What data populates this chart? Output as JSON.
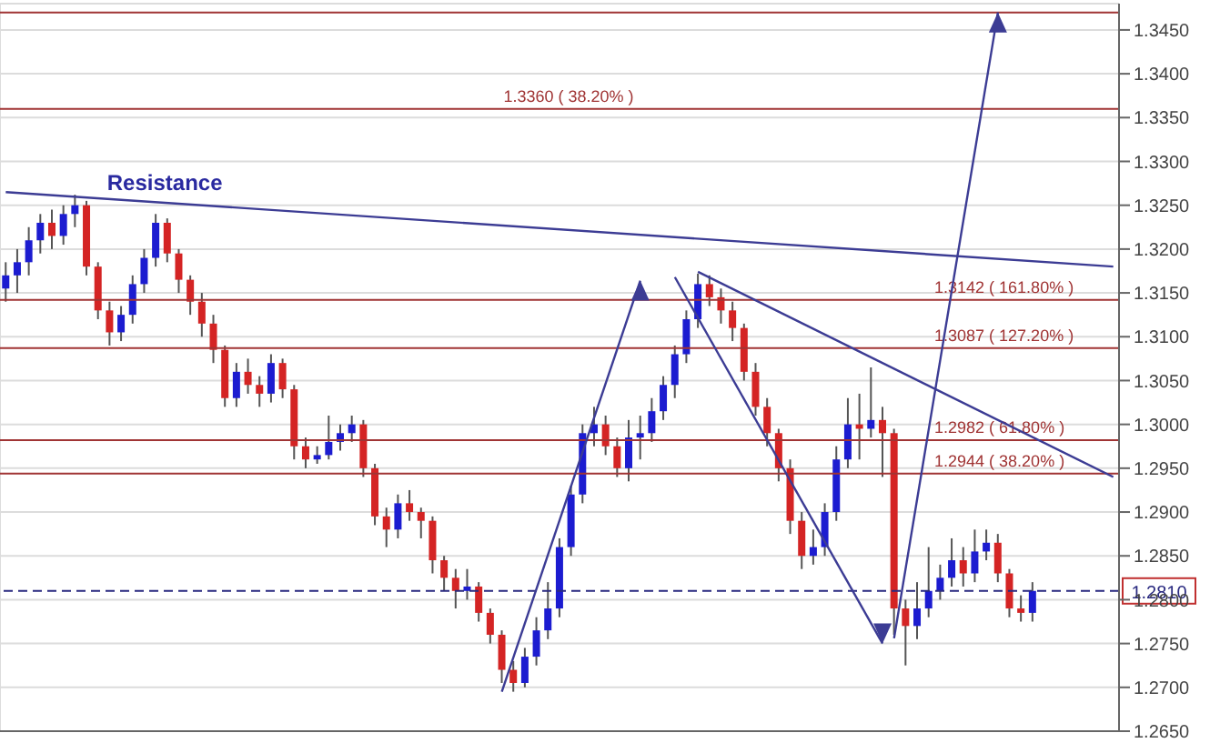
{
  "chart_data": {
    "type": "candlestick",
    "categories": [
      null,
      null,
      null,
      null,
      null,
      null,
      null,
      null,
      null,
      null,
      null,
      null,
      null,
      null,
      null,
      null,
      null,
      null,
      null,
      null,
      null,
      null,
      null,
      null,
      null,
      null,
      null,
      null,
      null,
      null,
      null,
      null,
      null,
      null,
      null,
      null,
      null,
      null,
      null,
      null,
      null,
      null,
      null,
      null,
      null,
      null,
      null,
      null,
      null,
      null,
      null,
      null,
      null,
      null,
      null,
      null,
      null,
      null,
      null,
      null,
      null,
      null,
      null,
      null,
      null,
      null,
      null,
      null,
      null,
      null,
      null,
      null,
      null,
      null,
      null,
      null,
      null,
      null,
      null,
      null,
      null,
      null,
      null,
      null,
      null,
      null,
      null,
      null,
      null,
      null,
      null,
      null,
      null,
      null,
      null,
      null,
      null
    ],
    "ohlc": [
      [
        1.3155,
        1.3185,
        1.314,
        1.317
      ],
      [
        1.317,
        1.32,
        1.315,
        1.3185
      ],
      [
        1.3185,
        1.3225,
        1.317,
        1.321
      ],
      [
        1.321,
        1.324,
        1.3195,
        1.323
      ],
      [
        1.323,
        1.3245,
        1.32,
        1.3215
      ],
      [
        1.3215,
        1.325,
        1.3205,
        1.324
      ],
      [
        1.324,
        1.3262,
        1.3225,
        1.325
      ],
      [
        1.325,
        1.3255,
        1.317,
        1.318
      ],
      [
        1.318,
        1.3185,
        1.312,
        1.313
      ],
      [
        1.313,
        1.314,
        1.309,
        1.3105
      ],
      [
        1.3105,
        1.3135,
        1.3095,
        1.3125
      ],
      [
        1.3125,
        1.317,
        1.3115,
        1.316
      ],
      [
        1.316,
        1.32,
        1.315,
        1.319
      ],
      [
        1.319,
        1.324,
        1.318,
        1.323
      ],
      [
        1.323,
        1.3235,
        1.3185,
        1.3195
      ],
      [
        1.3195,
        1.32,
        1.315,
        1.3165
      ],
      [
        1.3165,
        1.317,
        1.3125,
        1.314
      ],
      [
        1.314,
        1.315,
        1.31,
        1.3115
      ],
      [
        1.3115,
        1.3125,
        1.307,
        1.3085
      ],
      [
        1.3085,
        1.309,
        1.302,
        1.303
      ],
      [
        1.303,
        1.307,
        1.302,
        1.306
      ],
      [
        1.306,
        1.3075,
        1.3035,
        1.3045
      ],
      [
        1.3045,
        1.3055,
        1.302,
        1.3035
      ],
      [
        1.3035,
        1.308,
        1.3025,
        1.307
      ],
      [
        1.307,
        1.3075,
        1.303,
        1.304
      ],
      [
        1.304,
        1.3045,
        1.296,
        1.2975
      ],
      [
        1.2975,
        1.2985,
        1.295,
        1.296
      ],
      [
        1.296,
        1.2975,
        1.2955,
        1.2965
      ],
      [
        1.2965,
        1.301,
        1.296,
        1.298
      ],
      [
        1.298,
        1.3,
        1.297,
        1.299
      ],
      [
        1.299,
        1.301,
        1.298,
        1.3
      ],
      [
        1.3,
        1.3005,
        1.294,
        1.295
      ],
      [
        1.295,
        1.2955,
        1.2885,
        1.2895
      ],
      [
        1.2895,
        1.2905,
        1.286,
        1.288
      ],
      [
        1.288,
        1.292,
        1.287,
        1.291
      ],
      [
        1.291,
        1.2925,
        1.289,
        1.29
      ],
      [
        1.29,
        1.2905,
        1.287,
        1.289
      ],
      [
        1.289,
        1.2895,
        1.283,
        1.2845
      ],
      [
        1.2845,
        1.285,
        1.281,
        1.2825
      ],
      [
        1.2825,
        1.2835,
        1.279,
        1.281
      ],
      [
        1.281,
        1.2835,
        1.28,
        1.2815
      ],
      [
        1.2815,
        1.282,
        1.2775,
        1.2785
      ],
      [
        1.2785,
        1.279,
        1.275,
        1.276
      ],
      [
        1.276,
        1.2765,
        1.2705,
        1.272
      ],
      [
        1.272,
        1.273,
        1.2695,
        1.2705
      ],
      [
        1.2705,
        1.2745,
        1.27,
        1.2735
      ],
      [
        1.2735,
        1.278,
        1.2725,
        1.2765
      ],
      [
        1.2765,
        1.282,
        1.2755,
        1.279
      ],
      [
        1.279,
        1.287,
        1.278,
        1.286
      ],
      [
        1.286,
        1.293,
        1.285,
        1.292
      ],
      [
        1.292,
        1.3,
        1.291,
        1.299
      ],
      [
        1.299,
        1.302,
        1.2975,
        1.3
      ],
      [
        1.3,
        1.301,
        1.2965,
        1.2975
      ],
      [
        1.2975,
        1.2985,
        1.294,
        1.295
      ],
      [
        1.295,
        1.3005,
        1.2935,
        1.2985
      ],
      [
        1.2985,
        1.301,
        1.296,
        1.299
      ],
      [
        1.299,
        1.303,
        1.298,
        1.3015
      ],
      [
        1.3015,
        1.3055,
        1.3005,
        1.3045
      ],
      [
        1.3045,
        1.309,
        1.303,
        1.308
      ],
      [
        1.308,
        1.313,
        1.307,
        1.312
      ],
      [
        1.312,
        1.3172,
        1.311,
        1.316
      ],
      [
        1.316,
        1.317,
        1.3135,
        1.3145
      ],
      [
        1.3145,
        1.3155,
        1.3115,
        1.313
      ],
      [
        1.313,
        1.314,
        1.3095,
        1.311
      ],
      [
        1.311,
        1.3115,
        1.305,
        1.306
      ],
      [
        1.306,
        1.307,
        1.301,
        1.302
      ],
      [
        1.302,
        1.303,
        1.2975,
        1.299
      ],
      [
        1.299,
        1.2995,
        1.2935,
        1.295
      ],
      [
        1.295,
        1.296,
        1.2875,
        1.289
      ],
      [
        1.289,
        1.29,
        1.2835,
        1.285
      ],
      [
        1.285,
        1.288,
        1.284,
        1.286
      ],
      [
        1.286,
        1.291,
        1.285,
        1.29
      ],
      [
        1.29,
        1.2975,
        1.289,
        1.296
      ],
      [
        1.296,
        1.303,
        1.295,
        1.3
      ],
      [
        1.3,
        1.3035,
        1.296,
        1.2995
      ],
      [
        1.2995,
        1.3065,
        1.2985,
        1.3005
      ],
      [
        1.3005,
        1.302,
        1.294,
        1.299
      ],
      [
        1.299,
        1.2995,
        1.276,
        1.279
      ],
      [
        1.279,
        1.28,
        1.2725,
        1.277
      ],
      [
        1.277,
        1.282,
        1.2755,
        1.279
      ],
      [
        1.279,
        1.286,
        1.278,
        1.281
      ],
      [
        1.281,
        1.284,
        1.28,
        1.2825
      ],
      [
        1.2825,
        1.287,
        1.2815,
        1.2845
      ],
      [
        1.2845,
        1.286,
        1.2815,
        1.283
      ],
      [
        1.283,
        1.288,
        1.282,
        1.2855
      ],
      [
        1.2855,
        1.288,
        1.2845,
        1.2865
      ],
      [
        1.2865,
        1.2875,
        1.282,
        1.283
      ],
      [
        1.283,
        1.2835,
        1.278,
        1.279
      ],
      [
        1.279,
        1.2805,
        1.2775,
        1.2785
      ],
      [
        1.2785,
        1.282,
        1.2775,
        1.281
      ],
      null,
      null,
      null,
      null,
      null,
      null,
      null
    ],
    "colors": [
      "#1c1cd0",
      "#1c1cd0",
      "#1c1cd0",
      "#1c1cd0",
      "#d42424",
      "#1c1cd0",
      "#1c1cd0",
      "#d42424",
      "#d42424",
      "#d42424",
      "#1c1cd0",
      "#1c1cd0",
      "#1c1cd0",
      "#1c1cd0",
      "#d42424",
      "#d42424",
      "#d42424",
      "#d42424",
      "#d42424",
      "#d42424",
      "#1c1cd0",
      "#d42424",
      "#d42424",
      "#1c1cd0",
      "#d42424",
      "#d42424",
      "#d42424",
      "#1c1cd0",
      "#1c1cd0",
      "#1c1cd0",
      "#1c1cd0",
      "#d42424",
      "#d42424",
      "#d42424",
      "#1c1cd0",
      "#d42424",
      "#d42424",
      "#d42424",
      "#d42424",
      "#d42424",
      "#1c1cd0",
      "#d42424",
      "#d42424",
      "#d42424",
      "#d42424",
      "#1c1cd0",
      "#1c1cd0",
      "#1c1cd0",
      "#1c1cd0",
      "#1c1cd0",
      "#1c1cd0",
      "#1c1cd0",
      "#d42424",
      "#d42424",
      "#1c1cd0",
      "#1c1cd0",
      "#1c1cd0",
      "#1c1cd0",
      "#1c1cd0",
      "#1c1cd0",
      "#1c1cd0",
      "#d42424",
      "#d42424",
      "#d42424",
      "#d42424",
      "#d42424",
      "#d42424",
      "#d42424",
      "#d42424",
      "#d42424",
      "#1c1cd0",
      "#1c1cd0",
      "#1c1cd0",
      "#1c1cd0",
      "#d42424",
      "#1c1cd0",
      "#d42424",
      "#d42424",
      "#d42424",
      "#1c1cd0",
      "#1c1cd0",
      "#1c1cd0",
      "#1c1cd0",
      "#d42424",
      "#1c1cd0",
      "#1c1cd0",
      "#d42424",
      "#d42424",
      "#d42424",
      "#1c1cd0",
      null,
      null,
      null,
      null,
      null,
      null,
      null
    ],
    "series": [
      {
        "type": "line",
        "color": "#3c3c94",
        "values": [
          1.3265,
          null,
          null,
          null,
          null,
          null,
          null,
          null,
          null,
          null,
          null,
          null,
          null,
          null,
          null,
          null,
          null,
          null,
          null,
          null,
          null,
          null,
          null,
          null,
          null,
          null,
          null,
          null,
          null,
          null,
          null,
          null,
          null,
          null,
          null,
          null,
          null,
          null,
          null,
          null,
          null,
          null,
          null,
          null,
          null,
          null,
          null,
          null,
          null,
          null,
          null,
          null,
          null,
          null,
          null,
          null,
          null,
          null,
          null,
          null,
          null,
          null,
          null,
          null,
          null,
          null,
          null,
          null,
          null,
          null,
          null,
          null,
          null,
          null,
          null,
          null,
          null,
          null,
          null,
          null,
          null,
          null,
          null,
          null,
          null,
          null,
          null,
          null,
          null,
          null,
          null,
          null,
          null,
          null,
          null,
          null,
          1.318
        ]
      },
      {
        "type": "line",
        "color": "#3c3c94",
        "values": [
          null,
          null,
          null,
          null,
          null,
          null,
          null,
          null,
          null,
          null,
          null,
          null,
          null,
          null,
          null,
          null,
          null,
          null,
          null,
          null,
          null,
          null,
          null,
          null,
          null,
          null,
          null,
          null,
          null,
          null,
          null,
          null,
          null,
          null,
          null,
          null,
          null,
          null,
          null,
          null,
          null,
          null,
          null,
          null,
          null,
          null,
          null,
          null,
          null,
          null,
          null,
          null,
          null,
          null,
          null,
          null,
          null,
          null,
          null,
          null,
          1.3174,
          null,
          null,
          null,
          null,
          null,
          null,
          null,
          null,
          null,
          null,
          null,
          null,
          null,
          null,
          null,
          null,
          null,
          null,
          null,
          null,
          null,
          null,
          null,
          null,
          null,
          null,
          null,
          null,
          null,
          null,
          null,
          null,
          null,
          null,
          null,
          1.294
        ]
      },
      {
        "type": "line",
        "color": "#3c3c94",
        "values": [
          null,
          null,
          null,
          null,
          null,
          null,
          null,
          null,
          null,
          null,
          null,
          null,
          null,
          null,
          null,
          null,
          null,
          null,
          null,
          null,
          null,
          null,
          null,
          null,
          null,
          null,
          null,
          null,
          null,
          null,
          null,
          null,
          null,
          null,
          null,
          null,
          null,
          null,
          null,
          null,
          null,
          null,
          null,
          1.2695,
          null,
          null,
          null,
          null,
          null,
          null,
          null,
          null,
          null,
          null,
          null,
          1.3164,
          null,
          null,
          null,
          null,
          null,
          null,
          null,
          null,
          null,
          null,
          null,
          null,
          null,
          null,
          null,
          null,
          null,
          null,
          null,
          null,
          null,
          null,
          null,
          null,
          null,
          null,
          null,
          null,
          null,
          null,
          null,
          null,
          null,
          null,
          null,
          null,
          null,
          null,
          null,
          null,
          null
        ]
      },
      {
        "type": "line",
        "color": "#3c3c94",
        "values": [
          null,
          null,
          null,
          null,
          null,
          null,
          null,
          null,
          null,
          null,
          null,
          null,
          null,
          null,
          null,
          null,
          null,
          null,
          null,
          null,
          null,
          null,
          null,
          null,
          null,
          null,
          null,
          null,
          null,
          null,
          null,
          null,
          null,
          null,
          null,
          null,
          null,
          null,
          null,
          null,
          null,
          null,
          null,
          null,
          null,
          null,
          null,
          null,
          null,
          null,
          null,
          null,
          null,
          null,
          null,
          null,
          null,
          null,
          1.3168,
          null,
          null,
          null,
          null,
          null,
          null,
          null,
          null,
          null,
          null,
          null,
          null,
          null,
          null,
          null,
          null,
          null,
          1.275,
          null,
          null,
          null,
          null,
          null,
          null,
          null,
          null,
          null,
          null,
          null,
          null,
          null,
          null,
          null,
          null,
          null,
          null,
          null,
          null
        ]
      },
      {
        "type": "line",
        "color": "#3c3c94",
        "values": [
          null,
          null,
          null,
          null,
          null,
          null,
          null,
          null,
          null,
          null,
          null,
          null,
          null,
          null,
          null,
          null,
          null,
          null,
          null,
          null,
          null,
          null,
          null,
          null,
          null,
          null,
          null,
          null,
          null,
          null,
          null,
          null,
          null,
          null,
          null,
          null,
          null,
          null,
          null,
          null,
          null,
          null,
          null,
          null,
          null,
          null,
          null,
          null,
          null,
          null,
          null,
          null,
          null,
          null,
          null,
          null,
          null,
          null,
          null,
          null,
          null,
          null,
          null,
          null,
          null,
          null,
          null,
          null,
          null,
          null,
          null,
          null,
          null,
          null,
          null,
          null,
          null,
          1.2756,
          null,
          null,
          null,
          null,
          null,
          null,
          null,
          null,
          1.347,
          null,
          null,
          null,
          null,
          null,
          null,
          null,
          null,
          null,
          null
        ]
      }
    ],
    "ylim": [
      1.265,
      1.348
    ],
    "yticks": [
      {
        "value": 1.265,
        "label": "1.2650"
      },
      {
        "value": 1.27,
        "label": "1.2700"
      },
      {
        "value": 1.275,
        "label": "1.2750"
      },
      {
        "value": 1.28,
        "label": "1.2800"
      },
      {
        "value": 1.285,
        "label": "1.2850"
      },
      {
        "value": 1.29,
        "label": "1.2900"
      },
      {
        "value": 1.295,
        "label": "1.2950"
      },
      {
        "value": 1.3,
        "label": "1.3000"
      },
      {
        "value": 1.305,
        "label": "1.3050"
      },
      {
        "value": 1.31,
        "label": "1.3100"
      },
      {
        "value": 1.315,
        "label": "1.3150"
      },
      {
        "value": 1.32,
        "label": "1.3200"
      },
      {
        "value": 1.325,
        "label": "1.3250"
      },
      {
        "value": 1.33,
        "label": "1.3300"
      },
      {
        "value": 1.335,
        "label": "1.3350"
      },
      {
        "value": 1.34,
        "label": "1.3400"
      },
      {
        "value": 1.345,
        "label": "1.3450"
      }
    ],
    "ref_lines": [
      {
        "axis": "y",
        "value": 1.281,
        "label": "1.2810",
        "color": "#2a2a80",
        "line_style": "dashed"
      },
      {
        "axis": "y",
        "value": 1.2944,
        "label": "1.2944 ( 38.20% )",
        "color": "#a03434"
      },
      {
        "axis": "y",
        "value": 1.2982,
        "label": "1.2982 ( 61.80% )",
        "color": "#a03434"
      },
      {
        "axis": "y",
        "value": 1.3087,
        "label": "1.3087 ( 127.20% )",
        "color": "#a03434"
      },
      {
        "axis": "y",
        "value": 1.3142,
        "label": "1.3142 ( 161.80% )",
        "color": "#a03434"
      },
      {
        "axis": "y",
        "value": 1.336,
        "label": "1.3360 ( 38.20% )",
        "color": "#a03434"
      },
      {
        "axis": "y",
        "value": 1.347,
        "label": null,
        "color": "#a03434"
      }
    ],
    "annotations": [
      {
        "text": "Resistance",
        "y": 1.3255
      }
    ],
    "grid": true,
    "tick_labels": "y"
  }
}
